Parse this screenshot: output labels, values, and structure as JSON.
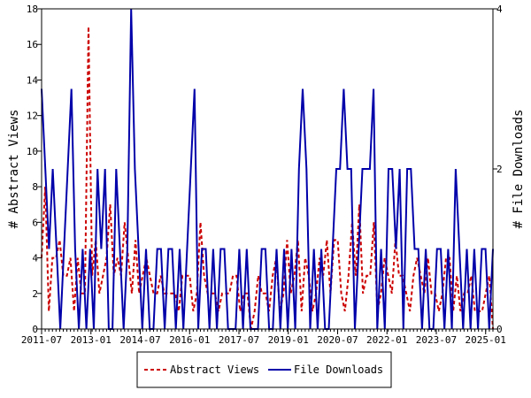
{
  "chart_data": {
    "type": "line",
    "ylabel_left": "# Abstract Views",
    "ylabel_right": "# File Downloads",
    "ylim_left": [
      0,
      18
    ],
    "ylim_right": [
      0,
      4
    ],
    "left_ticks": [
      "0",
      "2",
      "4",
      "6",
      "8",
      "10",
      "12",
      "14",
      "16",
      "18"
    ],
    "right_ticks": [
      "0",
      "2",
      "4"
    ],
    "x_tick_labels": [
      "2011-07",
      "2013-01",
      "2014-07",
      "2016-01",
      "2017-07",
      "2019-01",
      "2020-07",
      "2022-01",
      "2023-07",
      "2025-01"
    ],
    "colors": {
      "abstract_views": "#cc0000",
      "file_downloads": "#0000aa"
    },
    "series": [
      {
        "name": "Abstract Views",
        "axis": "left",
        "style": "dashed",
        "values": [
          4,
          8,
          1,
          4,
          4,
          5,
          3,
          3,
          4,
          1,
          4,
          2,
          2,
          17,
          3,
          5,
          2,
          3,
          4,
          7,
          3,
          4,
          3,
          6,
          4,
          2,
          5,
          2,
          3,
          4,
          3,
          2,
          2,
          3,
          2,
          2,
          2,
          2,
          1,
          3,
          3,
          3,
          1,
          2,
          6,
          3,
          2,
          2,
          2,
          1,
          2,
          2,
          2,
          3,
          3,
          1,
          2,
          2,
          0,
          1,
          3,
          2,
          2,
          1,
          3,
          4,
          1,
          2,
          5,
          2,
          3,
          5,
          1,
          4,
          3,
          1,
          2,
          4,
          3,
          5,
          2,
          5,
          5,
          2,
          1,
          3,
          6,
          3,
          7,
          2,
          3,
          3,
          6,
          1,
          2,
          4,
          3,
          2,
          5,
          3,
          3,
          2,
          1,
          3,
          4,
          3,
          2,
          4,
          2,
          2,
          1,
          2,
          4,
          4,
          1,
          3,
          1,
          2,
          2,
          3,
          1,
          1,
          1,
          2,
          3,
          0
        ]
      },
      {
        "name": "File Downloads",
        "axis": "right",
        "style": "solid",
        "values": [
          3,
          2,
          1,
          2,
          1,
          0,
          1,
          2,
          3,
          1,
          0,
          1,
          0,
          1,
          0,
          2,
          1,
          2,
          0,
          0,
          2,
          1,
          0,
          1,
          4,
          2,
          1,
          0,
          1,
          0,
          0,
          1,
          1,
          0,
          1,
          1,
          0,
          1,
          0,
          1,
          2,
          3,
          0,
          1,
          1,
          0,
          1,
          0,
          1,
          1,
          0,
          0,
          0,
          1,
          0,
          1,
          0,
          0,
          0,
          1,
          1,
          0,
          0,
          1,
          0,
          1,
          0,
          1,
          0,
          2,
          3,
          2,
          0,
          1,
          0,
          1,
          0,
          0,
          1,
          2,
          2,
          3,
          2,
          2,
          0,
          1,
          2,
          2,
          2,
          3,
          0,
          1,
          0,
          2,
          2,
          1,
          2,
          0,
          2,
          2,
          1,
          1,
          0,
          1,
          0,
          0,
          1,
          1,
          0,
          1,
          0,
          2,
          1,
          0,
          1,
          0,
          1,
          0,
          1,
          1,
          0,
          1
        ]
      }
    ],
    "legend": {
      "position": "bottom",
      "entries": [
        "Abstract Views",
        "File Downloads"
      ]
    },
    "grid": false
  }
}
